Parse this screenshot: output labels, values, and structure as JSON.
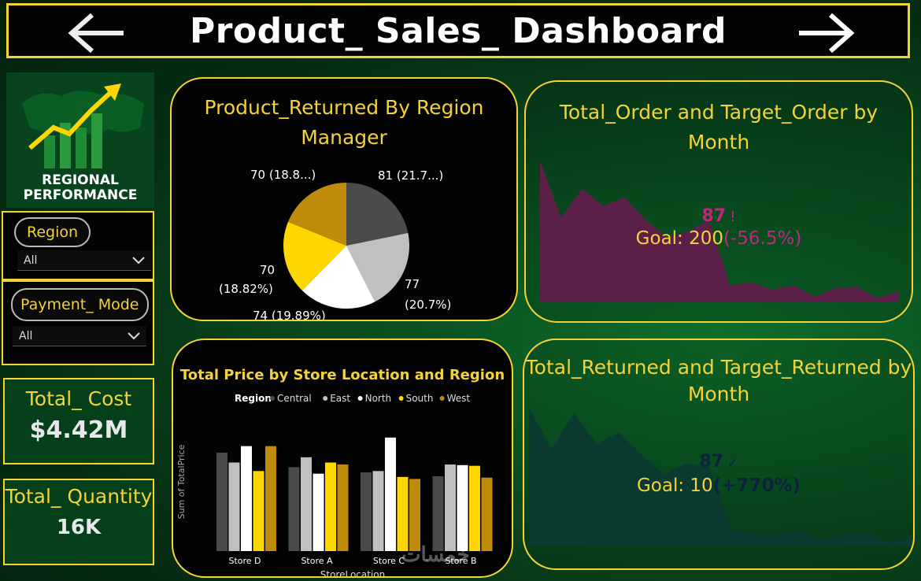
{
  "header": {
    "title": "Product_ Sales_ Dashboard"
  },
  "logo": {
    "line1": "REGIONAL",
    "line2": "PERFORMANCE"
  },
  "slicers": [
    {
      "label": "Region",
      "value": "All"
    },
    {
      "label": "Payment_ Mode",
      "value": "All"
    }
  ],
  "kpis": [
    {
      "label": "Total_ Cost",
      "value": "$4.42M"
    },
    {
      "label": "Total_ Quantity",
      "value": "16K"
    }
  ],
  "pie": {
    "title_line1": "Product_Returned By Region",
    "title_line2": "Manager",
    "labels": [
      "81 (21.7...)",
      "77",
      "(20.7%)",
      "74 (19.89%)",
      "70",
      "(18.82%)",
      "70 (18.8...)"
    ]
  },
  "orders": {
    "title_line1": "Total_Order and Target_Order by",
    "title_line2": "Month",
    "value": "87",
    "mark": "!",
    "goal": "Goal: 200",
    "delta": "(-56.5%)"
  },
  "returned": {
    "title_line1": "Total_Returned and Target_Returned by",
    "title_line2": "Month",
    "value": "87",
    "mark": "✓",
    "goal": "Goal: 10",
    "delta": "(+770%)"
  },
  "colors": {
    "accent": "#f3d23a",
    "central": "#4a4a4a",
    "east": "#c0c0c0",
    "north": "#ffffff",
    "south": "#ffd700",
    "west": "#bf8b0a",
    "order_area": "#5c1f47",
    "order_text": "#c4257e",
    "returned_area": "#0a3a30",
    "returned_text": "#0d2240"
  },
  "chart_data": [
    {
      "type": "pie",
      "values": [
        81,
        77,
        74,
        70,
        70
      ],
      "colors": [
        "#4a4a4a",
        "#c0c0c0",
        "#ffffff",
        "#ffd700",
        "#bf8b0a"
      ]
    },
    {
      "type": "bar",
      "title": "Total Price by Store Location and Region",
      "legend_title": "Region",
      "legend_placement": "top",
      "xlabel": "StoreLocation",
      "ylabel": "Sum of TotalPrice",
      "categories": [
        "Store D",
        "Store A",
        "Store C",
        "Store B"
      ],
      "ylim": [
        0,
        180
      ],
      "series": [
        {
          "name": "Central",
          "values": [
            150,
            128,
            120,
            114
          ]
        },
        {
          "name": "East",
          "values": [
            135,
            143,
            122,
            132
          ]
        },
        {
          "name": "North",
          "values": [
            160,
            118,
            173,
            131
          ]
        },
        {
          "name": "South",
          "values": [
            122,
            135,
            113,
            130
          ]
        },
        {
          "name": "West",
          "values": [
            160,
            132,
            110,
            112
          ]
        }
      ]
    },
    {
      "type": "area",
      "values": [
        100,
        60,
        80,
        68,
        74,
        58,
        46,
        50,
        58,
        12,
        14,
        9,
        12,
        4,
        10,
        11,
        3,
        8
      ],
      "ylim": [
        0,
        100
      ]
    },
    {
      "type": "area",
      "values": [
        100,
        70,
        96,
        74,
        82,
        66,
        52,
        60,
        57,
        12,
        9,
        8,
        12,
        4,
        9,
        10,
        3,
        6
      ],
      "ylim": [
        0,
        100
      ]
    }
  ]
}
